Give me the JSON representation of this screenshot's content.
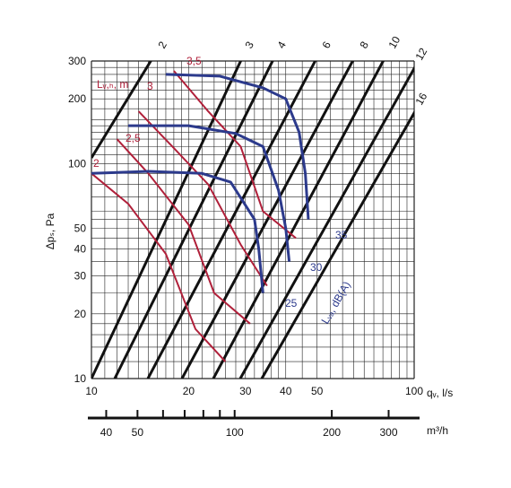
{
  "chart_data": {
    "type": "line",
    "title": "",
    "xlabel": "qᵥ, l/s",
    "xlabel2": "m³/h",
    "ylabel": "Δpₛ, Pa",
    "x_scale": "log",
    "y_scale": "log",
    "xlim": [
      10,
      100
    ],
    "ylim": [
      10,
      300
    ],
    "x_ticks": [
      "10",
      "20",
      "30",
      "40",
      "50",
      "100"
    ],
    "x2_ticks": [
      "40",
      "50",
      "100",
      "200",
      "300"
    ],
    "y_ticks": [
      "10",
      "20",
      "30",
      "40",
      "50",
      "100",
      "200",
      "300"
    ],
    "grid": true,
    "diagonal_lines": {
      "labels": [
        "2",
        "3",
        "4",
        "6",
        "8",
        "10",
        "12",
        "16"
      ],
      "color": "#111111"
    },
    "red_series": {
      "name": "Lᵥ,ₕ, m",
      "color": "#b0203a",
      "labels": [
        "2",
        "2,5",
        "3",
        "3,5"
      ],
      "curves": [
        {
          "name": "2",
          "points": [
            [
              10,
              90
            ],
            [
              13,
              65
            ],
            [
              17,
              38
            ],
            [
              21,
              17
            ],
            [
              26,
              12
            ]
          ]
        },
        {
          "name": "2,5",
          "points": [
            [
              12,
              130
            ],
            [
              15,
              90
            ],
            [
              20,
              52
            ],
            [
              24,
              25
            ],
            [
              31,
              18
            ]
          ]
        },
        {
          "name": "3",
          "points": [
            [
              14,
              175
            ],
            [
              18,
              118
            ],
            [
              23,
              80
            ],
            [
              29,
              42
            ],
            [
              35,
              27
            ]
          ]
        },
        {
          "name": "3,5",
          "points": [
            [
              18,
              270
            ],
            [
              23,
              175
            ],
            [
              29,
              120
            ],
            [
              34,
              60
            ],
            [
              43,
              45
            ]
          ]
        }
      ]
    },
    "blue_series": {
      "name": "Lᵥₐ, dB(A)",
      "color": "#2c3a8c",
      "labels": [
        "25",
        "30",
        "35"
      ],
      "curves": [
        {
          "name": "25",
          "points": [
            [
              10,
              90
            ],
            [
              15,
              92
            ],
            [
              22,
              90
            ],
            [
              27,
              82
            ],
            [
              32,
              55
            ],
            [
              33,
              40
            ],
            [
              34,
              25
            ]
          ]
        },
        {
          "name": "30",
          "points": [
            [
              13,
              150
            ],
            [
              20,
              150
            ],
            [
              28,
              138
            ],
            [
              34,
              120
            ],
            [
              38,
              75
            ],
            [
              40,
              50
            ],
            [
              41,
              35
            ]
          ]
        },
        {
          "name": "35",
          "points": [
            [
              17,
              260
            ],
            [
              25,
              255
            ],
            [
              34,
              225
            ],
            [
              40,
              200
            ],
            [
              44,
              140
            ],
            [
              46,
              90
            ],
            [
              47,
              55
            ]
          ]
        }
      ]
    }
  }
}
